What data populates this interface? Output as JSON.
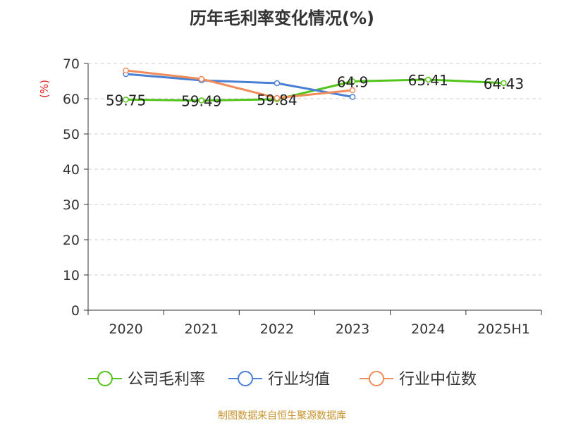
{
  "chart_data": {
    "type": "line",
    "title": "历年毛利率变化情况(%)",
    "ylabel": "(%)",
    "xlabel": "",
    "categories": [
      "2020",
      "2021",
      "2022",
      "2023",
      "2024",
      "2025H1"
    ],
    "ylim": [
      0,
      70
    ],
    "yticks": [
      0,
      10,
      20,
      30,
      40,
      50,
      60,
      70
    ],
    "grid": true,
    "legend_position": "bottom",
    "series": [
      {
        "name": "公司毛利率",
        "color": "#52c41a",
        "values": [
          59.75,
          59.49,
          59.84,
          64.9,
          65.41,
          64.43
        ],
        "labels": [
          "59.75",
          "59.49",
          "59.84",
          "64.9",
          "65.41",
          "64.43"
        ]
      },
      {
        "name": "行业均值",
        "color": "#4a7fd6",
        "values": [
          67,
          65.2,
          64.4,
          60.5,
          null,
          null
        ]
      },
      {
        "name": "行业中位数",
        "color": "#f08c5a",
        "values": [
          68,
          65.6,
          60.2,
          62.4,
          null,
          null
        ]
      }
    ]
  },
  "footer": "制图数据来自恒生聚源数据库"
}
